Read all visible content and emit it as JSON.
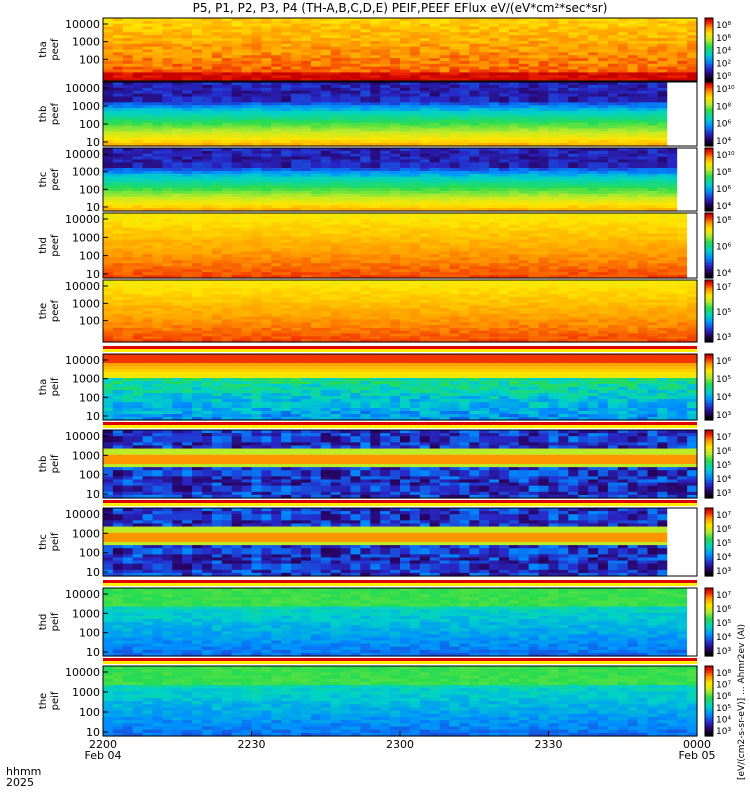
{
  "title": "P5, P1, P2, P3, P4 (TH-A,B,C,D,E) PEIF,PEEF EFlux eV/(eV*cm²*sec*sr)",
  "time_axis": {
    "row_label_1": "hhmm",
    "row_label_2": "2025",
    "ticks": [
      {
        "t": 0,
        "label": "2200",
        "date": "Feb 04"
      },
      {
        "t": 30,
        "label": "2230",
        "date": ""
      },
      {
        "t": 60,
        "label": "2300",
        "date": ""
      },
      {
        "t": 90,
        "label": "2330",
        "date": ""
      },
      {
        "t": 120,
        "label": "0000",
        "date": "Feb 05"
      }
    ]
  },
  "colorbar_label": "[eV/(cm2-s-sr-eV)] ... Ahmr2ev (AI)",
  "chart_data": [
    {
      "type": "heatmap",
      "probe": "tha",
      "species": "peef",
      "ylabel": [
        "tha",
        "peef"
      ],
      "yticks": [
        "10000",
        "1000",
        "100"
      ],
      "cticks": [
        "10⁸",
        "10⁶",
        "10⁴",
        "10²",
        "10⁰"
      ],
      "palette": "orange",
      "data_end": 1.0
    },
    {
      "type": "heatmap",
      "probe": "thb",
      "species": "peef",
      "ylabel": [
        "thb",
        "peef"
      ],
      "yticks": [
        "10000",
        "1000",
        "100",
        "10"
      ],
      "cticks": [
        "10¹⁰",
        "10⁸",
        "10⁶",
        "10⁴"
      ],
      "palette": "darkgreen",
      "data_end": 0.95
    },
    {
      "type": "heatmap",
      "probe": "thc",
      "species": "peef",
      "ylabel": [
        "thc",
        "peef"
      ],
      "yticks": [
        "10000",
        "1000",
        "100",
        "10"
      ],
      "cticks": [
        "10¹⁰",
        "10⁸",
        "10⁶",
        "10⁴"
      ],
      "palette": "darkgreen",
      "data_end": 0.97
    },
    {
      "type": "heatmap",
      "probe": "thd",
      "species": "peef",
      "ylabel": [
        "thd",
        "peef"
      ],
      "yticks": [
        "10000",
        "1000",
        "100",
        "10"
      ],
      "cticks": [
        "10⁸",
        "10⁶",
        "10⁴"
      ],
      "palette": "yellow",
      "data_end": 0.98
    },
    {
      "type": "heatmap",
      "probe": "the",
      "species": "peef",
      "ylabel": [
        "the",
        "peef"
      ],
      "yticks": [
        "10000",
        "1000",
        "100"
      ],
      "cticks": [
        "10⁷",
        "10⁵",
        "10³"
      ],
      "palette": "yellow",
      "data_end": 1.0
    },
    {
      "type": "heatmap",
      "probe": "tha",
      "species": "peif",
      "ylabel": [
        "tha",
        "peif"
      ],
      "yticks": [
        "10000",
        "1000",
        "100",
        "10"
      ],
      "cticks": [
        "10⁶",
        "10⁵",
        "10⁴",
        "10³"
      ],
      "palette": "ion_tha",
      "data_end": 1.0
    },
    {
      "type": "heatmap",
      "probe": "thb",
      "species": "peif",
      "ylabel": [
        "thb",
        "peif"
      ],
      "yticks": [
        "10000",
        "1000",
        "100",
        "10"
      ],
      "cticks": [
        "10⁷",
        "10⁶",
        "10⁵",
        "10⁴",
        "10³"
      ],
      "palette": "ion_band",
      "data_end": 1.0
    },
    {
      "type": "heatmap",
      "probe": "thc",
      "species": "peif",
      "ylabel": [
        "thc",
        "peif"
      ],
      "yticks": [
        "10000",
        "1000",
        "100",
        "10"
      ],
      "cticks": [
        "10⁷",
        "10⁶",
        "10⁵",
        "10⁴",
        "10³"
      ],
      "palette": "ion_band",
      "data_end": 0.95
    },
    {
      "type": "heatmap",
      "probe": "thd",
      "species": "peif",
      "ylabel": [
        "thd",
        "peif"
      ],
      "yticks": [
        "10000",
        "1000",
        "100",
        "10"
      ],
      "cticks": [
        "10⁷",
        "10⁶",
        "10⁵",
        "10⁴",
        "10³"
      ],
      "palette": "ion_green",
      "data_end": 0.98
    },
    {
      "type": "heatmap",
      "probe": "the",
      "species": "peif",
      "ylabel": [
        "the",
        "peif"
      ],
      "yticks": [
        "10000",
        "1000",
        "100",
        "10"
      ],
      "cticks": [
        "10⁸",
        "10⁷",
        "10⁶",
        "10⁵",
        "10⁴",
        "10³"
      ],
      "palette": "ion_green",
      "data_end": 1.0
    }
  ],
  "colors": {
    "background": "#ffffff",
    "axis": "#000000",
    "fill_white": "#ffffff"
  }
}
